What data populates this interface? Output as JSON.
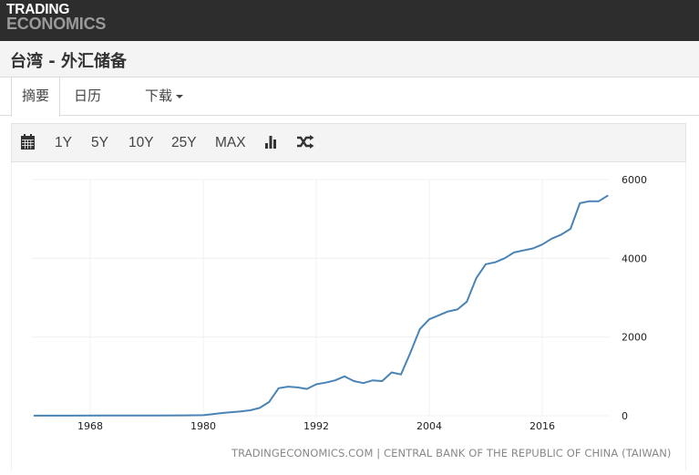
{
  "header": {
    "logo_line1": "TRADING",
    "logo_line2": "ECONOMICS"
  },
  "page": {
    "title": "台湾 - 外汇储备"
  },
  "tabs": [
    {
      "label": "摘要",
      "active": true
    },
    {
      "label": "日历",
      "active": false
    },
    {
      "label": "下载",
      "active": false,
      "dropdown": true
    }
  ],
  "toolbar": {
    "calendar_icon": "calendar-icon",
    "ranges": [
      "1Y",
      "5Y",
      "10Y",
      "25Y",
      "MAX"
    ],
    "chart_type_icon": "bar-chart-icon",
    "compare_icon": "shuffle-icon"
  },
  "colors": {
    "line": "#4a83b5",
    "topbar": "#2d2d2d",
    "toolbar_bg": "#f4f4f4"
  },
  "chart_data": {
    "type": "line",
    "title": "台湾 - 外汇储备",
    "xlabel": "",
    "ylabel": "",
    "x_tick_labels": [
      "1968",
      "1980",
      "1992",
      "2004",
      "2016"
    ],
    "y_tick_labels": [
      "0",
      "2000",
      "4000",
      "6000"
    ],
    "ylim": [
      0,
      6000
    ],
    "xlim": [
      1962,
      2023.5
    ],
    "grid": true,
    "y_axis_position": "right",
    "series": [
      {
        "name": "外汇储备",
        "x": [
          1962,
          1965,
          1970,
          1975,
          1978,
          1980,
          1981,
          1982,
          1983,
          1984,
          1985,
          1986,
          1987,
          1988,
          1989,
          1990,
          1991,
          1992,
          1993,
          1994,
          1995,
          1996,
          1997,
          1998,
          1999,
          2000,
          2001,
          2002,
          2003,
          2004,
          2005,
          2006,
          2007,
          2008,
          2009,
          2010,
          2011,
          2012,
          2013,
          2014,
          2015,
          2016,
          2017,
          2018,
          2019,
          2020,
          2021,
          2022,
          2023
        ],
        "values": [
          2,
          3,
          5,
          8,
          10,
          15,
          40,
          70,
          90,
          110,
          140,
          200,
          350,
          700,
          740,
          720,
          680,
          800,
          840,
          900,
          1000,
          880,
          830,
          900,
          880,
          1100,
          1050,
          1600,
          2200,
          2450,
          2550,
          2650,
          2700,
          2900,
          3500,
          3850,
          3900,
          4000,
          4150,
          4200,
          4250,
          4350,
          4500,
          4600,
          4750,
          5400,
          5450,
          5450,
          5600
        ]
      }
    ]
  },
  "footer": {
    "source": "TRADINGECONOMICS.COM | CENTRAL BANK OF THE REPUBLIC OF CHINA (TAIWAN)"
  }
}
